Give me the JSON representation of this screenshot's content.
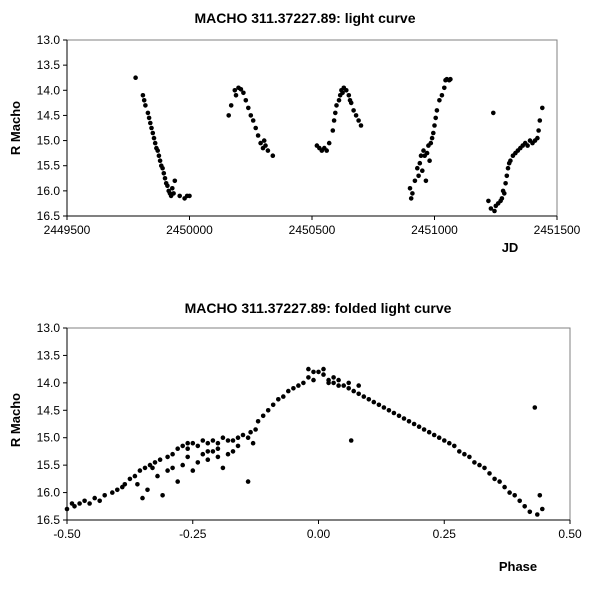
{
  "chart_data": [
    {
      "type": "scatter",
      "title": "MACHO 311.37227.89: light curve",
      "xlabel": "JD",
      "ylabel": "R Macho",
      "xlim": [
        2449500,
        2451500
      ],
      "ylim": [
        13.0,
        16.5
      ],
      "y_inverted": true,
      "grid": false,
      "xticks": [
        "2449500",
        "2450000",
        "2450500",
        "2451000",
        "2451500"
      ],
      "yticks": [
        "13.0",
        "13.5",
        "14.0",
        "14.5",
        "15.0",
        "15.5",
        "16.0",
        "16.5"
      ],
      "points": [
        [
          2449780,
          13.75
        ],
        [
          2449810,
          14.1
        ],
        [
          2449815,
          14.2
        ],
        [
          2449820,
          14.3
        ],
        [
          2449830,
          14.45
        ],
        [
          2449835,
          14.55
        ],
        [
          2449840,
          14.65
        ],
        [
          2449845,
          14.75
        ],
        [
          2449850,
          14.85
        ],
        [
          2449855,
          14.95
        ],
        [
          2449860,
          15.05
        ],
        [
          2449865,
          15.15
        ],
        [
          2449870,
          15.2
        ],
        [
          2449875,
          15.3
        ],
        [
          2449880,
          15.4
        ],
        [
          2449885,
          15.5
        ],
        [
          2449890,
          15.55
        ],
        [
          2449895,
          15.65
        ],
        [
          2449900,
          15.75
        ],
        [
          2449905,
          15.85
        ],
        [
          2449910,
          15.9
        ],
        [
          2449915,
          16.0
        ],
        [
          2449920,
          16.05
        ],
        [
          2449925,
          16.1
        ],
        [
          2449930,
          15.95
        ],
        [
          2449935,
          16.05
        ],
        [
          2449940,
          15.8
        ],
        [
          2449960,
          16.1
        ],
        [
          2449980,
          16.15
        ],
        [
          2449990,
          16.1
        ],
        [
          2450000,
          16.1
        ],
        [
          2450160,
          14.5
        ],
        [
          2450170,
          14.3
        ],
        [
          2450185,
          14.0
        ],
        [
          2450190,
          14.1
        ],
        [
          2450200,
          13.95
        ],
        [
          2450210,
          13.98
        ],
        [
          2450220,
          14.05
        ],
        [
          2450230,
          14.2
        ],
        [
          2450240,
          14.35
        ],
        [
          2450250,
          14.5
        ],
        [
          2450260,
          14.6
        ],
        [
          2450270,
          14.75
        ],
        [
          2450280,
          14.9
        ],
        [
          2450290,
          15.05
        ],
        [
          2450300,
          15.15
        ],
        [
          2450305,
          15.0
        ],
        [
          2450310,
          15.1
        ],
        [
          2450320,
          15.2
        ],
        [
          2450340,
          15.3
        ],
        [
          2450520,
          15.1
        ],
        [
          2450530,
          15.15
        ],
        [
          2450540,
          15.2
        ],
        [
          2450550,
          15.15
        ],
        [
          2450560,
          15.2
        ],
        [
          2450570,
          15.05
        ],
        [
          2450585,
          14.8
        ],
        [
          2450590,
          14.6
        ],
        [
          2450595,
          14.45
        ],
        [
          2450600,
          14.3
        ],
        [
          2450610,
          14.2
        ],
        [
          2450615,
          14.1
        ],
        [
          2450620,
          14.0
        ],
        [
          2450625,
          14.05
        ],
        [
          2450630,
          13.95
        ],
        [
          2450640,
          14.0
        ],
        [
          2450650,
          14.1
        ],
        [
          2450655,
          14.2
        ],
        [
          2450660,
          14.25
        ],
        [
          2450670,
          14.4
        ],
        [
          2450680,
          14.5
        ],
        [
          2450690,
          14.6
        ],
        [
          2450700,
          14.7
        ],
        [
          2450900,
          15.95
        ],
        [
          2450905,
          16.15
        ],
        [
          2450910,
          16.05
        ],
        [
          2450920,
          15.8
        ],
        [
          2450930,
          15.55
        ],
        [
          2450935,
          15.7
        ],
        [
          2450940,
          15.45
        ],
        [
          2450945,
          15.3
        ],
        [
          2450950,
          15.6
        ],
        [
          2450955,
          15.2
        ],
        [
          2450960,
          15.3
        ],
        [
          2450965,
          15.8
        ],
        [
          2450970,
          15.25
        ],
        [
          2450975,
          15.1
        ],
        [
          2450980,
          15.4
        ],
        [
          2450985,
          15.05
        ],
        [
          2450990,
          14.95
        ],
        [
          2450995,
          14.85
        ],
        [
          2451000,
          14.7
        ],
        [
          2451005,
          14.55
        ],
        [
          2451010,
          14.4
        ],
        [
          2451020,
          14.2
        ],
        [
          2451030,
          14.1
        ],
        [
          2451040,
          13.95
        ],
        [
          2451045,
          13.8
        ],
        [
          2451050,
          13.78
        ],
        [
          2451060,
          13.8
        ],
        [
          2451065,
          13.78
        ],
        [
          2451220,
          16.2
        ],
        [
          2451230,
          16.35
        ],
        [
          2451240,
          14.45
        ],
        [
          2451245,
          16.4
        ],
        [
          2451250,
          16.3
        ],
        [
          2451260,
          16.25
        ],
        [
          2451270,
          16.2
        ],
        [
          2451275,
          16.15
        ],
        [
          2451280,
          16.0
        ],
        [
          2451285,
          16.05
        ],
        [
          2451290,
          15.85
        ],
        [
          2451295,
          15.7
        ],
        [
          2451300,
          15.55
        ],
        [
          2451305,
          15.45
        ],
        [
          2451310,
          15.4
        ],
        [
          2451320,
          15.3
        ],
        [
          2451330,
          15.25
        ],
        [
          2451340,
          15.2
        ],
        [
          2451350,
          15.15
        ],
        [
          2451360,
          15.1
        ],
        [
          2451370,
          15.05
        ],
        [
          2451380,
          15.1
        ],
        [
          2451390,
          15.0
        ],
        [
          2451400,
          15.05
        ],
        [
          2451410,
          15.0
        ],
        [
          2451420,
          14.95
        ],
        [
          2451425,
          14.8
        ],
        [
          2451430,
          14.6
        ],
        [
          2451440,
          14.35
        ]
      ]
    },
    {
      "type": "scatter",
      "title": "MACHO 311.37227.89: folded light curve",
      "xlabel": "Phase",
      "ylabel": "R Macho",
      "xlim": [
        -0.5,
        0.5
      ],
      "ylim": [
        13.0,
        16.5
      ],
      "y_inverted": true,
      "grid": false,
      "xticks": [
        "-0.50",
        "-0.25",
        "0.00",
        "0.25",
        "0.50"
      ],
      "yticks": [
        "13.0",
        "13.5",
        "14.0",
        "14.5",
        "15.0",
        "15.5",
        "16.0",
        "16.5"
      ],
      "points": [
        [
          -0.5,
          16.3
        ],
        [
          -0.49,
          16.2
        ],
        [
          -0.485,
          16.25
        ],
        [
          -0.475,
          16.2
        ],
        [
          -0.465,
          16.15
        ],
        [
          -0.455,
          16.2
        ],
        [
          -0.445,
          16.1
        ],
        [
          -0.435,
          16.15
        ],
        [
          -0.425,
          16.05
        ],
        [
          -0.41,
          16.0
        ],
        [
          -0.4,
          15.95
        ],
        [
          -0.39,
          15.9
        ],
        [
          -0.385,
          15.85
        ],
        [
          -0.375,
          15.75
        ],
        [
          -0.365,
          15.7
        ],
        [
          -0.355,
          15.6
        ],
        [
          -0.345,
          15.55
        ],
        [
          -0.335,
          15.5
        ],
        [
          -0.325,
          15.45
        ],
        [
          -0.315,
          15.4
        ],
        [
          -0.3,
          15.35
        ],
        [
          -0.29,
          15.3
        ],
        [
          -0.28,
          15.2
        ],
        [
          -0.27,
          15.15
        ],
        [
          -0.26,
          15.1
        ],
        [
          -0.25,
          15.1
        ],
        [
          -0.24,
          15.15
        ],
        [
          -0.23,
          15.05
        ],
        [
          -0.22,
          15.1
        ],
        [
          -0.21,
          15.05
        ],
        [
          -0.2,
          15.1
        ],
        [
          -0.19,
          15.0
        ],
        [
          -0.18,
          15.05
        ],
        [
          -0.17,
          15.05
        ],
        [
          -0.16,
          15.0
        ],
        [
          -0.15,
          14.95
        ],
        [
          -0.14,
          15.0
        ],
        [
          -0.135,
          14.9
        ],
        [
          -0.36,
          15.85
        ],
        [
          -0.35,
          16.1
        ],
        [
          -0.34,
          15.95
        ],
        [
          -0.33,
          15.55
        ],
        [
          -0.32,
          15.7
        ],
        [
          -0.31,
          16.05
        ],
        [
          -0.3,
          15.6
        ],
        [
          -0.29,
          15.55
        ],
        [
          -0.28,
          15.8
        ],
        [
          -0.27,
          15.5
        ],
        [
          -0.26,
          15.35
        ],
        [
          -0.25,
          15.6
        ],
        [
          -0.24,
          15.45
        ],
        [
          -0.23,
          15.3
        ],
        [
          -0.22,
          15.4
        ],
        [
          -0.21,
          15.25
        ],
        [
          -0.2,
          15.35
        ],
        [
          -0.19,
          15.55
        ],
        [
          -0.18,
          15.3
        ],
        [
          -0.17,
          15.25
        ],
        [
          -0.16,
          15.15
        ],
        [
          -0.14,
          15.8
        ],
        [
          -0.13,
          15.1
        ],
        [
          -0.125,
          14.85
        ],
        [
          -0.26,
          15.2
        ],
        [
          -0.22,
          15.25
        ],
        [
          -0.2,
          15.2
        ],
        [
          -0.12,
          14.7
        ],
        [
          -0.11,
          14.6
        ],
        [
          -0.1,
          14.5
        ],
        [
          -0.09,
          14.4
        ],
        [
          -0.08,
          14.3
        ],
        [
          -0.07,
          14.25
        ],
        [
          -0.06,
          14.15
        ],
        [
          -0.05,
          14.1
        ],
        [
          -0.04,
          14.05
        ],
        [
          -0.03,
          14.0
        ],
        [
          -0.02,
          13.9
        ],
        [
          -0.01,
          13.8
        ],
        [
          0.0,
          13.8
        ],
        [
          0.01,
          13.85
        ],
        [
          0.02,
          13.95
        ],
        [
          0.03,
          14.0
        ],
        [
          0.04,
          14.05
        ],
        [
          0.05,
          14.05
        ],
        [
          0.06,
          14.1
        ],
        [
          0.07,
          14.15
        ],
        [
          0.08,
          14.2
        ],
        [
          0.09,
          14.25
        ],
        [
          0.1,
          14.3
        ],
        [
          0.11,
          14.35
        ],
        [
          0.12,
          14.4
        ],
        [
          0.13,
          14.45
        ],
        [
          0.14,
          14.5
        ],
        [
          0.15,
          14.55
        ],
        [
          0.16,
          14.6
        ],
        [
          0.17,
          14.65
        ],
        [
          0.18,
          14.7
        ],
        [
          0.19,
          14.75
        ],
        [
          0.2,
          14.8
        ],
        [
          0.21,
          14.85
        ],
        [
          0.22,
          14.9
        ],
        [
          0.23,
          14.95
        ],
        [
          0.24,
          15.0
        ],
        [
          0.25,
          15.05
        ],
        [
          0.26,
          15.1
        ],
        [
          0.27,
          15.15
        ],
        [
          0.28,
          15.25
        ],
        [
          0.29,
          15.3
        ],
        [
          0.3,
          15.35
        ],
        [
          0.31,
          15.45
        ],
        [
          0.32,
          15.5
        ],
        [
          0.33,
          15.55
        ],
        [
          0.34,
          15.65
        ],
        [
          0.35,
          15.75
        ],
        [
          0.36,
          15.8
        ],
        [
          0.37,
          15.9
        ],
        [
          0.38,
          16.0
        ],
        [
          0.39,
          16.05
        ],
        [
          0.4,
          16.15
        ],
        [
          0.41,
          16.25
        ],
        [
          0.42,
          16.35
        ],
        [
          -0.02,
          13.75
        ],
        [
          -0.01,
          13.95
        ],
        [
          0.01,
          13.75
        ],
        [
          0.02,
          14.0
        ],
        [
          0.04,
          13.95
        ],
        [
          0.06,
          14.0
        ],
        [
          0.08,
          14.05
        ],
        [
          0.03,
          13.9
        ],
        [
          0.065,
          15.05
        ],
        [
          0.43,
          14.45
        ],
        [
          0.44,
          16.05
        ],
        [
          0.445,
          16.3
        ],
        [
          0.435,
          16.4
        ]
      ]
    }
  ]
}
